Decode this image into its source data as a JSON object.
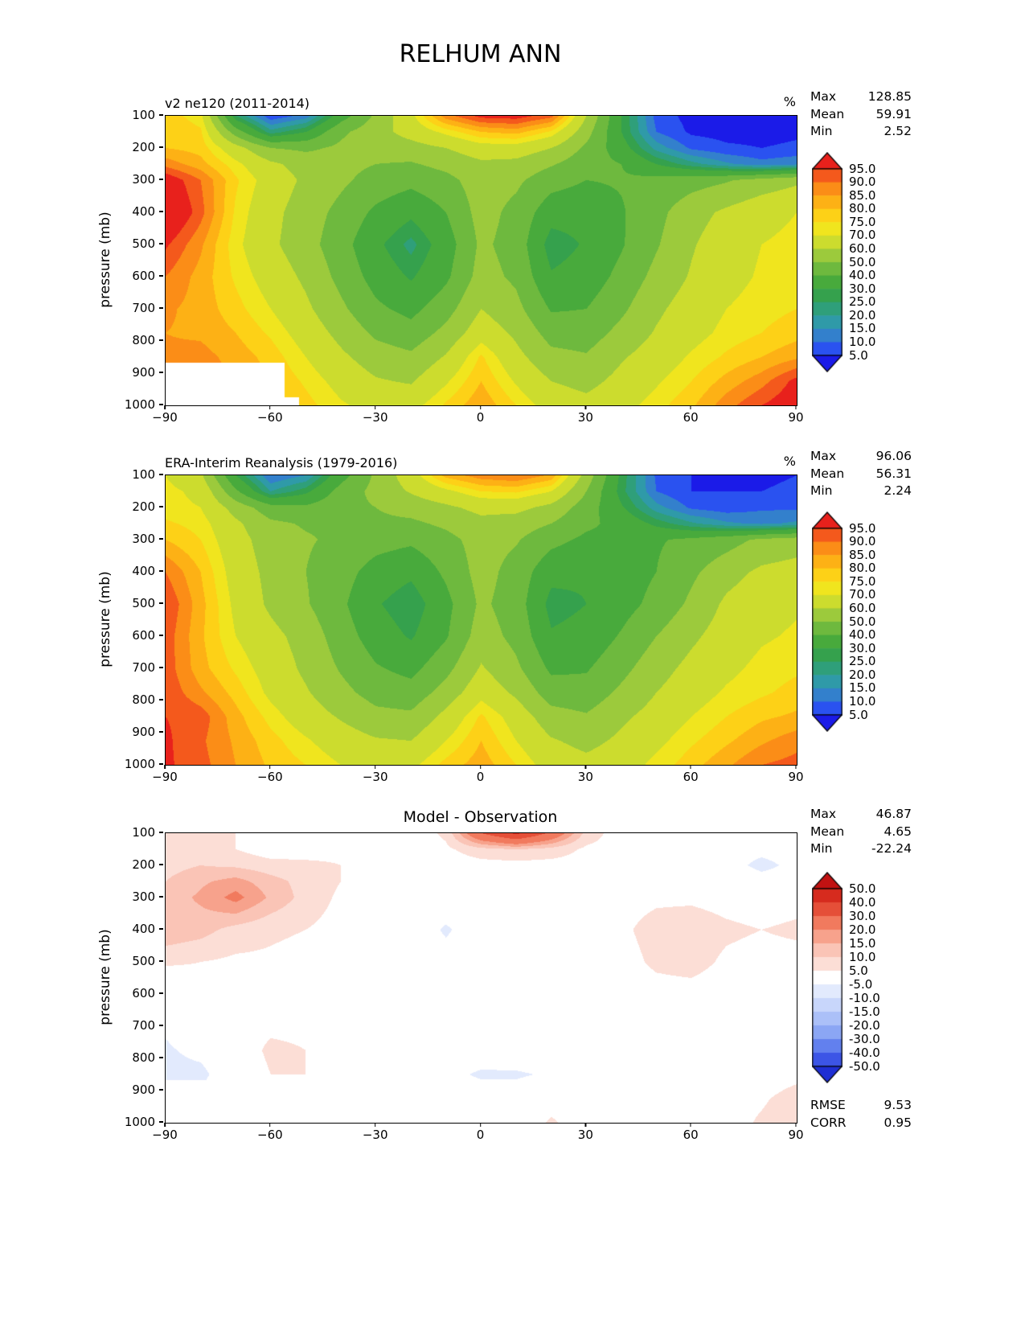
{
  "title": "RELHUM ANN",
  "axis": {
    "ylabel": "pressure (mb)",
    "x_ticks": [
      "−90",
      "−60",
      "−30",
      "0",
      "30",
      "60",
      "90"
    ],
    "x_tick_values": [
      -90,
      -60,
      -30,
      0,
      30,
      60,
      90
    ],
    "y_ticks": [
      100,
      200,
      300,
      400,
      500,
      600,
      700,
      800,
      900,
      1000
    ]
  },
  "panels": [
    {
      "title": "v2 ne120 (2011-2014)",
      "unit": "%",
      "stats": [
        {
          "label": "Max",
          "value": "128.85"
        },
        {
          "label": "Mean",
          "value": "59.91"
        },
        {
          "label": "Min",
          "value": "2.52"
        }
      ]
    },
    {
      "title": "ERA-Interim Reanalysis (1979-2016)",
      "unit": "%",
      "stats": [
        {
          "label": "Max",
          "value": "96.06"
        },
        {
          "label": "Mean",
          "value": "56.31"
        },
        {
          "label": "Min",
          "value": "2.24"
        }
      ]
    },
    {
      "title": "Model - Observation",
      "stats": [
        {
          "label": "Max",
          "value": "46.87"
        },
        {
          "label": "Mean",
          "value": "4.65"
        },
        {
          "label": "Min",
          "value": "-22.24"
        }
      ],
      "extra_stats": [
        {
          "label": "RMSE",
          "value": "9.53"
        },
        {
          "label": "CORR",
          "value": "0.95"
        }
      ]
    }
  ],
  "chart_data": [
    {
      "type": "filled_contour",
      "name": "v2 ne120 (2011-2014)",
      "ylabel": "pressure (mb)",
      "unit": "%",
      "stats": {
        "max": 128.85,
        "mean": 59.91,
        "min": 2.52
      },
      "levels": [
        5,
        10,
        15,
        20,
        25,
        30,
        40,
        50,
        60,
        70,
        75,
        80,
        85,
        90,
        95
      ],
      "level_labels": [
        "95.0",
        "90.0",
        "85.0",
        "80.0",
        "75.0",
        "70.0",
        "60.0",
        "50.0",
        "40.0",
        "30.0",
        "25.0",
        "20.0",
        "15.0",
        "10.0",
        "5.0"
      ],
      "colors": [
        "#1b1be8",
        "#2a52f0",
        "#3380cc",
        "#2f9aa8",
        "#2f9f7a",
        "#35a14d",
        "#48aa3c",
        "#6eb93e",
        "#9cca3c",
        "#ccdc2e",
        "#f0e51e",
        "#fdd117",
        "#fdb115",
        "#fb8d17",
        "#f4591c",
        "#e8211c"
      ],
      "mask": [
        {
          "latMax": -56,
          "pMin": 868
        },
        {
          "latMax": -52,
          "pMin": 975
        }
      ],
      "x": [
        -90,
        -80,
        -70,
        -60,
        -50,
        -40,
        -30,
        -20,
        -10,
        0,
        10,
        20,
        30,
        40,
        50,
        60,
        70,
        80,
        90
      ],
      "y": [
        100,
        150,
        200,
        250,
        300,
        400,
        500,
        600,
        700,
        775,
        850,
        925,
        1000
      ],
      "values": [
        [
          78,
          72,
          25,
          6,
          12,
          35,
          52,
          68,
          88,
          97,
          98,
          92,
          60,
          30,
          8,
          3,
          2,
          2,
          3
        ],
        [
          80,
          76,
          45,
          22,
          30,
          48,
          56,
          64,
          72,
          80,
          82,
          74,
          54,
          30,
          10,
          4,
          3,
          3,
          4
        ],
        [
          80,
          78,
          64,
          50,
          48,
          52,
          54,
          56,
          60,
          66,
          66,
          60,
          48,
          34,
          18,
          9,
          6,
          5,
          6
        ],
        [
          88,
          82,
          72,
          62,
          56,
          53,
          50,
          49,
          53,
          58,
          57,
          51,
          44,
          40,
          30,
          22,
          16,
          12,
          14
        ],
        [
          100,
          90,
          76,
          66,
          58,
          52,
          46,
          43,
          47,
          55,
          52,
          44,
          40,
          41,
          43,
          46,
          49,
          54,
          58
        ],
        [
          105,
          92,
          74,
          63,
          55,
          47,
          38,
          32,
          40,
          54,
          47,
          34,
          33,
          39,
          47,
          56,
          62,
          67,
          70
        ],
        [
          96,
          86,
          72,
          62,
          54,
          44,
          32,
          23,
          35,
          52,
          46,
          26,
          31,
          39,
          49,
          59,
          66,
          70,
          72
        ],
        [
          90,
          83,
          74,
          66,
          58,
          47,
          36,
          29,
          38,
          54,
          48,
          31,
          34,
          43,
          53,
          61,
          67,
          71,
          73
        ],
        [
          86,
          83,
          77,
          70,
          62,
          52,
          42,
          37,
          46,
          60,
          53,
          39,
          40,
          48,
          58,
          65,
          70,
          73,
          75
        ],
        [
          85,
          84,
          80,
          74,
          66,
          57,
          48,
          44,
          53,
          66,
          58,
          46,
          45,
          53,
          61,
          67,
          72,
          75,
          78
        ],
        [
          86,
          87,
          83,
          78,
          70,
          62,
          55,
          52,
          61,
          76,
          63,
          53,
          51,
          59,
          65,
          71,
          76,
          80,
          84
        ],
        [
          88,
          88,
          85,
          80,
          74,
          67,
          61,
          59,
          69,
          80,
          69,
          60,
          57,
          63,
          69,
          75,
          82,
          88,
          97
        ],
        [
          90,
          89,
          86,
          81,
          77,
          71,
          67,
          67,
          76,
          84,
          75,
          66,
          63,
          67,
          73,
          79,
          88,
          95,
          100
        ]
      ]
    },
    {
      "type": "filled_contour",
      "name": "ERA-Interim Reanalysis (1979-2016)",
      "ylabel": "pressure (mb)",
      "unit": "%",
      "stats": {
        "max": 96.06,
        "mean": 56.31,
        "min": 2.24
      },
      "levels": [
        5,
        10,
        15,
        20,
        25,
        30,
        40,
        50,
        60,
        70,
        75,
        80,
        85,
        90,
        95
      ],
      "level_labels": [
        "95.0",
        "90.0",
        "85.0",
        "80.0",
        "75.0",
        "70.0",
        "60.0",
        "50.0",
        "40.0",
        "30.0",
        "25.0",
        "20.0",
        "15.0",
        "10.0",
        "5.0"
      ],
      "colors": [
        "#1b1be8",
        "#2a52f0",
        "#3380cc",
        "#2f9aa8",
        "#2f9f7a",
        "#35a14d",
        "#48aa3c",
        "#6eb93e",
        "#9cca3c",
        "#ccdc2e",
        "#f0e51e",
        "#fdd117",
        "#fdb115",
        "#fb8d17",
        "#f4591c",
        "#e8211c"
      ],
      "mask": [],
      "x": [
        -90,
        -80,
        -70,
        -60,
        -50,
        -40,
        -30,
        -20,
        -10,
        0,
        10,
        20,
        30,
        40,
        50,
        60,
        70,
        80,
        90
      ],
      "y": [
        100,
        150,
        200,
        250,
        300,
        400,
        500,
        600,
        700,
        775,
        850,
        925,
        1000
      ],
      "values": [
        [
          70,
          62,
          30,
          10,
          15,
          36,
          52,
          66,
          82,
          88,
          90,
          84,
          56,
          28,
          9,
          5,
          4,
          4,
          5
        ],
        [
          72,
          68,
          42,
          20,
          28,
          44,
          53,
          61,
          68,
          75,
          76,
          70,
          50,
          27,
          10,
          5,
          5,
          5,
          6
        ],
        [
          72,
          70,
          56,
          44,
          42,
          47,
          50,
          54,
          58,
          63,
          63,
          57,
          45,
          31,
          17,
          9,
          7,
          9,
          9
        ],
        [
          76,
          73,
          62,
          52,
          49,
          49,
          48,
          48,
          52,
          57,
          55,
          50,
          42,
          37,
          28,
          21,
          16,
          14,
          16
        ],
        [
          80,
          75,
          64,
          55,
          51,
          48,
          44,
          42,
          47,
          54,
          51,
          43,
          38,
          38,
          39,
          42,
          46,
          52,
          55
        ],
        [
          90,
          80,
          66,
          57,
          50,
          44,
          36,
          32,
          42,
          54,
          46,
          33,
          31,
          35,
          40,
          48,
          56,
          62,
          64
        ],
        [
          95,
          82,
          68,
          58,
          51,
          42,
          31,
          25,
          37,
          52,
          45,
          27,
          30,
          36,
          43,
          52,
          62,
          67,
          69
        ],
        [
          93,
          81,
          70,
          63,
          56,
          45,
          35,
          29,
          39,
          55,
          47,
          31,
          33,
          41,
          50,
          58,
          65,
          69,
          71
        ],
        [
          93,
          82,
          74,
          66,
          58,
          49,
          41,
          37,
          47,
          61,
          52,
          38,
          39,
          47,
          56,
          63,
          68,
          72,
          74
        ],
        [
          94,
          86,
          78,
          68,
          61,
          53,
          46,
          44,
          54,
          67,
          58,
          45,
          44,
          52,
          60,
          66,
          71,
          74,
          77
        ],
        [
          95,
          93,
          82,
          73,
          65,
          59,
          53,
          52,
          63,
          76,
          66,
          54,
          51,
          58,
          64,
          70,
          75,
          79,
          81
        ],
        [
          96,
          91,
          84,
          77,
          71,
          65,
          61,
          60,
          70,
          80,
          70,
          61,
          57,
          62,
          68,
          74,
          79,
          84,
          88
        ],
        [
          96,
          92,
          85,
          79,
          75,
          70,
          67,
          68,
          77,
          83,
          75,
          66,
          63,
          66,
          72,
          78,
          84,
          90,
          92
        ]
      ]
    },
    {
      "type": "filled_contour",
      "name": "Model - Observation",
      "ylabel": "pressure (mb)",
      "stats": {
        "max": 46.87,
        "mean": 4.65,
        "min": -22.24,
        "rmse": 9.53,
        "corr": 0.95
      },
      "levels": [
        -50,
        -40,
        -30,
        -20,
        -15,
        -10,
        -5,
        5,
        10,
        15,
        20,
        30,
        40,
        50
      ],
      "level_labels": [
        "50.0",
        "40.0",
        "30.0",
        "20.0",
        "15.0",
        "10.0",
        "5.0",
        "-5.0",
        "-10.0",
        "-15.0",
        "-20.0",
        "-30.0",
        "-40.0",
        "-50.0"
      ],
      "colors": [
        "#1f2fd4",
        "#3c55e6",
        "#6280ee",
        "#8ba6f4",
        "#abc0f8",
        "#c8d6fb",
        "#e2eafd",
        "#ffffff",
        "#fcded6",
        "#fac4b6",
        "#f7a28c",
        "#f17a5e",
        "#e54f38",
        "#d62b1e",
        "#c11212"
      ],
      "mask": [
        {
          "latMax": -56,
          "pMin": 868
        },
        {
          "latMax": -52,
          "pMin": 975
        }
      ],
      "x": [
        -90,
        -80,
        -70,
        -60,
        -50,
        -40,
        -30,
        -20,
        -10,
        0,
        10,
        20,
        30,
        40,
        50,
        60,
        70,
        80,
        90
      ],
      "y": [
        100,
        150,
        200,
        250,
        300,
        400,
        500,
        600,
        700,
        775,
        850,
        925,
        1000
      ],
      "values": [
        [
          8,
          10,
          5,
          -2,
          -2,
          -1,
          0,
          2,
          6,
          30,
          42,
          28,
          8,
          2,
          0,
          -1,
          -1,
          -1,
          -1
        ],
        [
          8,
          8,
          5,
          2,
          3,
          4,
          3,
          3,
          4,
          8,
          10,
          8,
          4,
          3,
          1,
          0,
          -2,
          -3,
          -2
        ],
        [
          8,
          10,
          9,
          7,
          6,
          5,
          4,
          2,
          2,
          3,
          3,
          3,
          3,
          3,
          2,
          1,
          -2,
          -7,
          -3
        ],
        [
          10,
          14,
          17,
          12,
          8,
          5,
          2,
          1,
          1,
          1,
          2,
          1,
          2,
          3,
          3,
          2,
          1,
          -2,
          -1
        ],
        [
          12,
          16,
          22,
          14,
          8,
          4,
          2,
          1,
          0,
          1,
          1,
          1,
          2,
          3,
          4,
          4,
          3,
          2,
          3
        ],
        [
          14,
          12,
          8,
          6,
          5,
          3,
          2,
          0,
          -6,
          0,
          1,
          1,
          2,
          4,
          7,
          8,
          6,
          5,
          6
        ],
        [
          6,
          5,
          4,
          4,
          3,
          2,
          1,
          -2,
          -2,
          0,
          1,
          -1,
          1,
          3,
          6,
          7,
          4,
          3,
          3
        ],
        [
          -2,
          2,
          4,
          3,
          2,
          2,
          1,
          0,
          -1,
          -1,
          1,
          0,
          1,
          2,
          3,
          3,
          2,
          2,
          2
        ],
        [
          -4,
          1,
          3,
          4,
          4,
          3,
          1,
          0,
          -1,
          -1,
          1,
          1,
          1,
          1,
          2,
          2,
          2,
          1,
          1
        ],
        [
          -6,
          -3,
          2,
          6,
          5,
          4,
          2,
          0,
          -1,
          -1,
          0,
          1,
          1,
          1,
          1,
          1,
          1,
          1,
          1
        ],
        [
          -7,
          -7,
          1,
          5,
          5,
          3,
          2,
          0,
          -3,
          -6,
          -6,
          -4,
          0,
          1,
          1,
          1,
          1,
          1,
          3
        ],
        [
          -7,
          -3,
          1,
          3,
          3,
          2,
          0,
          -1,
          -1,
          -1,
          -1,
          2,
          0,
          1,
          1,
          1,
          2,
          4,
          8
        ],
        [
          -6,
          -3,
          1,
          2,
          2,
          1,
          0,
          -1,
          -1,
          0,
          0,
          6,
          1,
          1,
          1,
          1,
          2,
          6,
          10
        ]
      ]
    }
  ]
}
